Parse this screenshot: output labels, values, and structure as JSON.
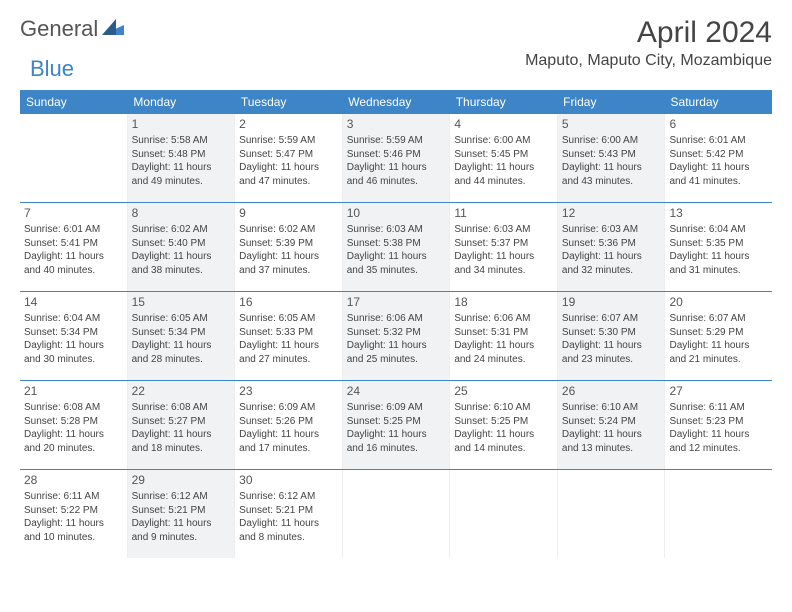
{
  "logo": {
    "text1": "General",
    "text2": "Blue"
  },
  "title": "April 2024",
  "location": "Maputo, Maputo City, Mozambique",
  "colors": {
    "accent": "#3d85c6",
    "shaded": "#f0f2f4",
    "text": "#333333",
    "bg": "#ffffff"
  },
  "day_names": [
    "Sunday",
    "Monday",
    "Tuesday",
    "Wednesday",
    "Thursday",
    "Friday",
    "Saturday"
  ],
  "weeks": [
    [
      {
        "num": "",
        "sunrise": "",
        "sunset": "",
        "daylight": "",
        "shaded": false
      },
      {
        "num": "1",
        "sunrise": "Sunrise: 5:58 AM",
        "sunset": "Sunset: 5:48 PM",
        "daylight": "Daylight: 11 hours and 49 minutes.",
        "shaded": true
      },
      {
        "num": "2",
        "sunrise": "Sunrise: 5:59 AM",
        "sunset": "Sunset: 5:47 PM",
        "daylight": "Daylight: 11 hours and 47 minutes.",
        "shaded": false
      },
      {
        "num": "3",
        "sunrise": "Sunrise: 5:59 AM",
        "sunset": "Sunset: 5:46 PM",
        "daylight": "Daylight: 11 hours and 46 minutes.",
        "shaded": true
      },
      {
        "num": "4",
        "sunrise": "Sunrise: 6:00 AM",
        "sunset": "Sunset: 5:45 PM",
        "daylight": "Daylight: 11 hours and 44 minutes.",
        "shaded": false
      },
      {
        "num": "5",
        "sunrise": "Sunrise: 6:00 AM",
        "sunset": "Sunset: 5:43 PM",
        "daylight": "Daylight: 11 hours and 43 minutes.",
        "shaded": true
      },
      {
        "num": "6",
        "sunrise": "Sunrise: 6:01 AM",
        "sunset": "Sunset: 5:42 PM",
        "daylight": "Daylight: 11 hours and 41 minutes.",
        "shaded": false
      }
    ],
    [
      {
        "num": "7",
        "sunrise": "Sunrise: 6:01 AM",
        "sunset": "Sunset: 5:41 PM",
        "daylight": "Daylight: 11 hours and 40 minutes.",
        "shaded": false
      },
      {
        "num": "8",
        "sunrise": "Sunrise: 6:02 AM",
        "sunset": "Sunset: 5:40 PM",
        "daylight": "Daylight: 11 hours and 38 minutes.",
        "shaded": true
      },
      {
        "num": "9",
        "sunrise": "Sunrise: 6:02 AM",
        "sunset": "Sunset: 5:39 PM",
        "daylight": "Daylight: 11 hours and 37 minutes.",
        "shaded": false
      },
      {
        "num": "10",
        "sunrise": "Sunrise: 6:03 AM",
        "sunset": "Sunset: 5:38 PM",
        "daylight": "Daylight: 11 hours and 35 minutes.",
        "shaded": true
      },
      {
        "num": "11",
        "sunrise": "Sunrise: 6:03 AM",
        "sunset": "Sunset: 5:37 PM",
        "daylight": "Daylight: 11 hours and 34 minutes.",
        "shaded": false
      },
      {
        "num": "12",
        "sunrise": "Sunrise: 6:03 AM",
        "sunset": "Sunset: 5:36 PM",
        "daylight": "Daylight: 11 hours and 32 minutes.",
        "shaded": true
      },
      {
        "num": "13",
        "sunrise": "Sunrise: 6:04 AM",
        "sunset": "Sunset: 5:35 PM",
        "daylight": "Daylight: 11 hours and 31 minutes.",
        "shaded": false
      }
    ],
    [
      {
        "num": "14",
        "sunrise": "Sunrise: 6:04 AM",
        "sunset": "Sunset: 5:34 PM",
        "daylight": "Daylight: 11 hours and 30 minutes.",
        "shaded": false
      },
      {
        "num": "15",
        "sunrise": "Sunrise: 6:05 AM",
        "sunset": "Sunset: 5:34 PM",
        "daylight": "Daylight: 11 hours and 28 minutes.",
        "shaded": true
      },
      {
        "num": "16",
        "sunrise": "Sunrise: 6:05 AM",
        "sunset": "Sunset: 5:33 PM",
        "daylight": "Daylight: 11 hours and 27 minutes.",
        "shaded": false
      },
      {
        "num": "17",
        "sunrise": "Sunrise: 6:06 AM",
        "sunset": "Sunset: 5:32 PM",
        "daylight": "Daylight: 11 hours and 25 minutes.",
        "shaded": true
      },
      {
        "num": "18",
        "sunrise": "Sunrise: 6:06 AM",
        "sunset": "Sunset: 5:31 PM",
        "daylight": "Daylight: 11 hours and 24 minutes.",
        "shaded": false
      },
      {
        "num": "19",
        "sunrise": "Sunrise: 6:07 AM",
        "sunset": "Sunset: 5:30 PM",
        "daylight": "Daylight: 11 hours and 23 minutes.",
        "shaded": true
      },
      {
        "num": "20",
        "sunrise": "Sunrise: 6:07 AM",
        "sunset": "Sunset: 5:29 PM",
        "daylight": "Daylight: 11 hours and 21 minutes.",
        "shaded": false
      }
    ],
    [
      {
        "num": "21",
        "sunrise": "Sunrise: 6:08 AM",
        "sunset": "Sunset: 5:28 PM",
        "daylight": "Daylight: 11 hours and 20 minutes.",
        "shaded": false
      },
      {
        "num": "22",
        "sunrise": "Sunrise: 6:08 AM",
        "sunset": "Sunset: 5:27 PM",
        "daylight": "Daylight: 11 hours and 18 minutes.",
        "shaded": true
      },
      {
        "num": "23",
        "sunrise": "Sunrise: 6:09 AM",
        "sunset": "Sunset: 5:26 PM",
        "daylight": "Daylight: 11 hours and 17 minutes.",
        "shaded": false
      },
      {
        "num": "24",
        "sunrise": "Sunrise: 6:09 AM",
        "sunset": "Sunset: 5:25 PM",
        "daylight": "Daylight: 11 hours and 16 minutes.",
        "shaded": true
      },
      {
        "num": "25",
        "sunrise": "Sunrise: 6:10 AM",
        "sunset": "Sunset: 5:25 PM",
        "daylight": "Daylight: 11 hours and 14 minutes.",
        "shaded": false
      },
      {
        "num": "26",
        "sunrise": "Sunrise: 6:10 AM",
        "sunset": "Sunset: 5:24 PM",
        "daylight": "Daylight: 11 hours and 13 minutes.",
        "shaded": true
      },
      {
        "num": "27",
        "sunrise": "Sunrise: 6:11 AM",
        "sunset": "Sunset: 5:23 PM",
        "daylight": "Daylight: 11 hours and 12 minutes.",
        "shaded": false
      }
    ],
    [
      {
        "num": "28",
        "sunrise": "Sunrise: 6:11 AM",
        "sunset": "Sunset: 5:22 PM",
        "daylight": "Daylight: 11 hours and 10 minutes.",
        "shaded": false
      },
      {
        "num": "29",
        "sunrise": "Sunrise: 6:12 AM",
        "sunset": "Sunset: 5:21 PM",
        "daylight": "Daylight: 11 hours and 9 minutes.",
        "shaded": true
      },
      {
        "num": "30",
        "sunrise": "Sunrise: 6:12 AM",
        "sunset": "Sunset: 5:21 PM",
        "daylight": "Daylight: 11 hours and 8 minutes.",
        "shaded": false
      },
      {
        "num": "",
        "sunrise": "",
        "sunset": "",
        "daylight": "",
        "shaded": false
      },
      {
        "num": "",
        "sunrise": "",
        "sunset": "",
        "daylight": "",
        "shaded": false
      },
      {
        "num": "",
        "sunrise": "",
        "sunset": "",
        "daylight": "",
        "shaded": false
      },
      {
        "num": "",
        "sunrise": "",
        "sunset": "",
        "daylight": "",
        "shaded": false
      }
    ]
  ]
}
